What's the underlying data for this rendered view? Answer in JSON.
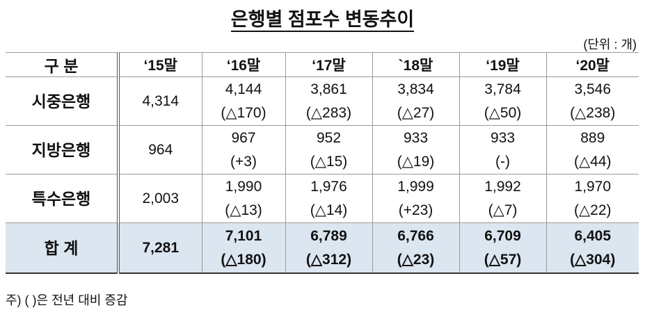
{
  "title": "은행별 점포수 변동추이",
  "unit": "(단위 : 개)",
  "table": {
    "header": [
      "구 분",
      "‘15말",
      "‘16말",
      "‘17말",
      "`18말",
      "‘19말",
      "‘20말"
    ],
    "rows": [
      {
        "label": "시중은행",
        "cells": [
          {
            "value": "4,314"
          },
          {
            "value": "4,144",
            "change": "(△170)"
          },
          {
            "value": "3,861",
            "change": "(△283)"
          },
          {
            "value": "3,834",
            "change": "(△27)"
          },
          {
            "value": "3,784",
            "change": "(△50)"
          },
          {
            "value": "3,546",
            "change": "(△238)"
          }
        ]
      },
      {
        "label": "지방은행",
        "cells": [
          {
            "value": "964"
          },
          {
            "value": "967",
            "change": "(+3)"
          },
          {
            "value": "952",
            "change": "(△15)"
          },
          {
            "value": "933",
            "change": "(△19)"
          },
          {
            "value": "933",
            "change": "(-)"
          },
          {
            "value": "889",
            "change": "(△44)"
          }
        ]
      },
      {
        "label": "특수은행",
        "cells": [
          {
            "value": "2,003"
          },
          {
            "value": "1,990",
            "change": "(△13)"
          },
          {
            "value": "1,976",
            "change": "(△14)"
          },
          {
            "value": "1,999",
            "change": "(+23)"
          },
          {
            "value": "1,992",
            "change": "(△7)"
          },
          {
            "value": "1,970",
            "change": "(△22)"
          }
        ]
      },
      {
        "label": "합 계",
        "total": true,
        "cells": [
          {
            "value": "7,281"
          },
          {
            "value": "7,101",
            "change": "(△180)"
          },
          {
            "value": "6,789",
            "change": "(△312)"
          },
          {
            "value": "6,766",
            "change": "(△23)"
          },
          {
            "value": "6,709",
            "change": "(△57)"
          },
          {
            "value": "6,405",
            "change": "(△304)"
          }
        ]
      }
    ]
  },
  "footnote": "주) ( )은 전년 대비 증감"
}
